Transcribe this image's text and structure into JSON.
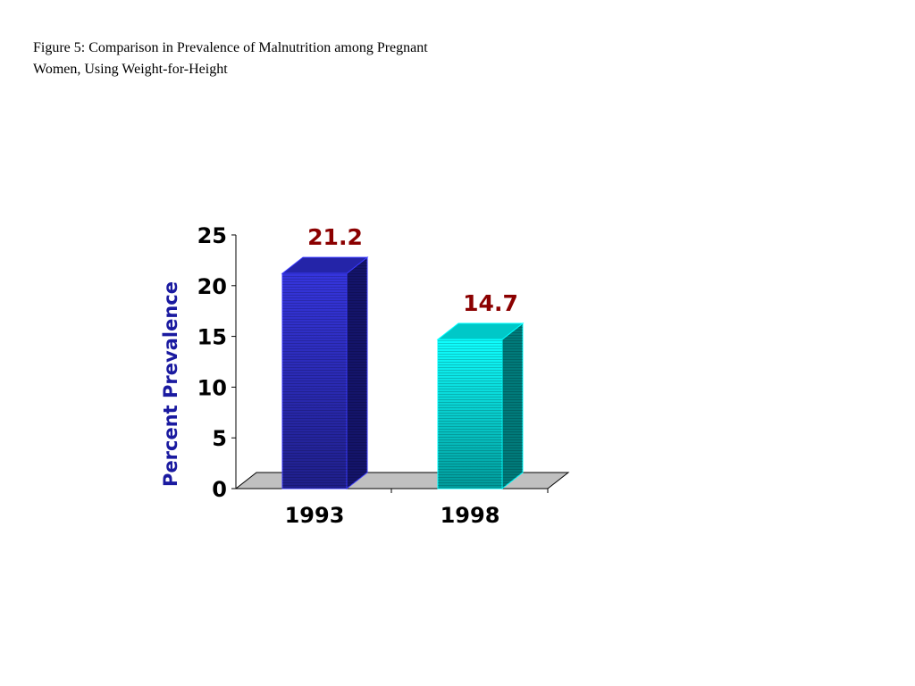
{
  "figure": {
    "caption_line1": "Figure 5: Comparison in Prevalence of Malnutrition among Pregnant",
    "caption_line2": "Women, Using Weight-for-Height"
  },
  "chart_data": {
    "type": "bar",
    "title": "Figure 5: Comparison in Prevalence of Malnutrition among Pregnant Women, Using Weight-for-Height",
    "xlabel": "",
    "ylabel": "Percent Prevalence",
    "categories": [
      "1993",
      "1998"
    ],
    "values": [
      21.2,
      14.7
    ],
    "data_labels": [
      "21.2",
      "14.7"
    ],
    "ylim": [
      0,
      25
    ],
    "yticks": [
      0,
      5,
      10,
      15,
      20,
      25
    ],
    "grid": false,
    "legend": "none",
    "bar_colors": [
      "#2b2bcc",
      "#00e5e5"
    ],
    "label_color": "#8b0000",
    "ylabel_color": "#1a1aa0",
    "floor_color": "#c0c0c0"
  }
}
